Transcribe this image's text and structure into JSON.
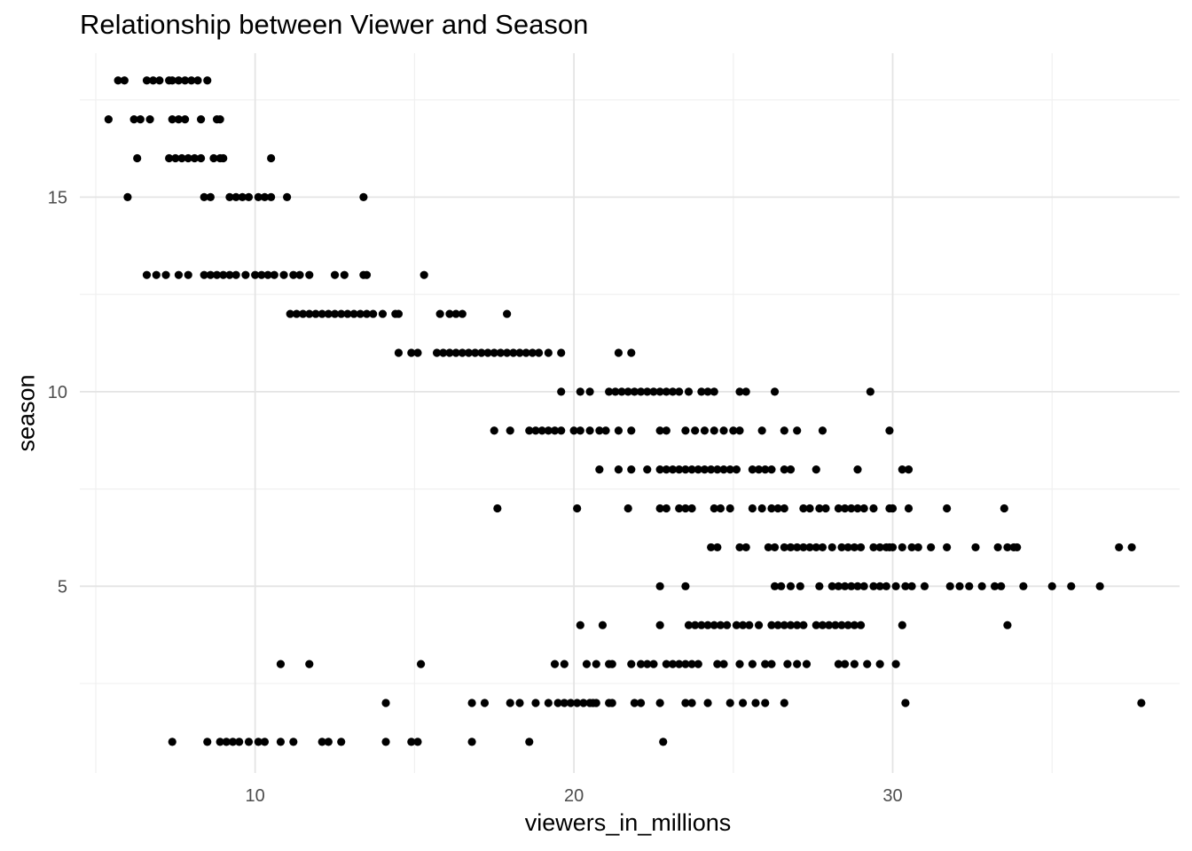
{
  "chart_data": {
    "type": "scatter",
    "title": "Relationship between Viewer and Season",
    "xlabel": "viewers_in_millions",
    "ylabel": "season",
    "xlim": [
      4.5,
      39
    ],
    "ylim": [
      0.2,
      18.7
    ],
    "x_ticks": [
      10,
      20,
      30
    ],
    "y_ticks": [
      5,
      10,
      15
    ],
    "grid": true,
    "legend": "none",
    "point_color": "#000000",
    "points": [
      {
        "season": 18,
        "x": [
          5.7,
          5.9,
          6.6,
          6.8,
          7.0,
          7.4,
          7.6,
          7.8,
          8.0,
          8.2,
          8.5,
          7.3
        ]
      },
      {
        "season": 17,
        "x": [
          5.4,
          6.2,
          6.4,
          6.7,
          7.4,
          7.6,
          7.8,
          8.3,
          8.8,
          8.9
        ]
      },
      {
        "season": 16,
        "x": [
          6.3,
          7.3,
          7.5,
          7.7,
          7.9,
          8.1,
          8.3,
          8.7,
          8.9,
          9.0,
          10.5
        ]
      },
      {
        "season": 15,
        "x": [
          6.0,
          8.4,
          8.6,
          9.2,
          9.4,
          9.6,
          9.8,
          10.1,
          10.3,
          10.5,
          11.0,
          13.4
        ]
      },
      {
        "season": 13,
        "x": [
          6.6,
          6.9,
          7.2,
          7.6,
          7.9,
          8.4,
          8.6,
          8.8,
          9.0,
          9.2,
          9.4,
          9.7,
          10.0,
          10.2,
          10.4,
          10.6,
          10.9,
          11.2,
          11.4,
          11.7,
          12.5,
          12.8,
          13.4,
          13.5,
          15.3
        ]
      },
      {
        "season": 12,
        "x": [
          11.1,
          11.3,
          11.5,
          11.7,
          11.9,
          12.1,
          12.3,
          12.5,
          12.7,
          12.9,
          13.1,
          13.3,
          13.5,
          13.7,
          14.0,
          14.4,
          14.5,
          15.8,
          16.1,
          16.3,
          16.5,
          17.9
        ]
      },
      {
        "season": 11,
        "x": [
          14.5,
          14.9,
          15.1,
          15.7,
          15.9,
          16.1,
          16.3,
          16.5,
          16.7,
          16.9,
          17.1,
          17.3,
          17.5,
          17.7,
          17.9,
          18.1,
          18.3,
          18.5,
          18.7,
          18.9,
          19.2,
          19.6,
          21.4,
          21.8
        ]
      },
      {
        "season": 10,
        "x": [
          19.6,
          20.2,
          20.5,
          21.1,
          21.3,
          21.5,
          21.7,
          21.9,
          22.1,
          22.3,
          22.5,
          22.7,
          22.9,
          23.1,
          23.3,
          23.6,
          24.0,
          24.2,
          24.4,
          25.2,
          25.4,
          26.3,
          29.3
        ]
      },
      {
        "season": 9,
        "x": [
          17.5,
          18.0,
          18.6,
          18.8,
          19.0,
          19.2,
          19.4,
          19.6,
          20.0,
          20.2,
          20.5,
          20.8,
          21.0,
          21.4,
          21.8,
          22.7,
          22.9,
          23.5,
          23.8,
          24.1,
          24.4,
          24.7,
          25.0,
          25.2,
          25.9,
          26.6,
          27.0,
          27.8,
          29.9
        ]
      },
      {
        "season": 8,
        "x": [
          20.8,
          21.4,
          21.8,
          22.3,
          22.7,
          22.9,
          23.1,
          23.3,
          23.5,
          23.7,
          23.9,
          24.1,
          24.3,
          24.5,
          24.7,
          24.9,
          25.1,
          25.6,
          25.8,
          26.0,
          26.2,
          26.6,
          26.8,
          27.6,
          28.9,
          30.3,
          30.5
        ]
      },
      {
        "season": 7,
        "x": [
          17.6,
          20.1,
          21.7,
          22.7,
          22.9,
          23.3,
          23.5,
          23.7,
          24.4,
          24.6,
          24.9,
          25.6,
          25.9,
          26.2,
          26.4,
          26.6,
          27.2,
          27.4,
          27.7,
          27.9,
          28.3,
          28.5,
          28.7,
          28.9,
          29.1,
          29.4,
          29.9,
          30.0,
          30.5,
          31.7,
          33.5
        ]
      },
      {
        "season": 6,
        "x": [
          24.3,
          24.5,
          25.2,
          25.4,
          26.1,
          26.3,
          26.6,
          26.8,
          27.0,
          27.2,
          27.4,
          27.6,
          27.8,
          28.1,
          28.4,
          28.6,
          28.8,
          29.0,
          29.4,
          29.6,
          29.8,
          29.9,
          30.0,
          30.3,
          30.6,
          30.8,
          31.2,
          31.7,
          32.6,
          33.3,
          33.6,
          33.8,
          33.9,
          37.1,
          37.5
        ]
      },
      {
        "season": 5,
        "x": [
          22.7,
          23.5,
          26.3,
          26.5,
          26.8,
          27.1,
          27.7,
          28.1,
          28.3,
          28.5,
          28.7,
          28.9,
          29.1,
          29.4,
          29.6,
          29.8,
          30.1,
          30.4,
          30.6,
          31.0,
          31.8,
          32.1,
          32.4,
          32.8,
          33.2,
          33.4,
          34.1,
          35.0,
          35.6,
          36.5
        ]
      },
      {
        "season": 4,
        "x": [
          20.2,
          20.9,
          22.7,
          23.6,
          23.8,
          24.0,
          24.2,
          24.4,
          24.6,
          24.8,
          25.1,
          25.3,
          25.5,
          25.8,
          26.2,
          26.4,
          26.6,
          26.8,
          27.0,
          27.2,
          27.6,
          27.8,
          28.0,
          28.2,
          28.4,
          28.6,
          28.8,
          29.0,
          30.3,
          33.6
        ]
      },
      {
        "season": 3,
        "x": [
          10.8,
          11.7,
          15.2,
          19.4,
          19.7,
          20.4,
          20.7,
          21.1,
          21.2,
          21.8,
          22.1,
          22.3,
          22.5,
          22.9,
          23.1,
          23.3,
          23.5,
          23.7,
          23.9,
          24.5,
          24.7,
          25.2,
          25.6,
          26.0,
          26.2,
          26.7,
          27.0,
          27.3,
          28.3,
          28.5,
          28.8,
          29.2,
          29.6,
          30.1
        ]
      },
      {
        "season": 2,
        "x": [
          14.1,
          16.8,
          17.2,
          18.0,
          18.3,
          18.8,
          19.2,
          19.5,
          19.7,
          19.9,
          20.1,
          20.3,
          20.5,
          20.6,
          20.7,
          21.1,
          21.2,
          21.9,
          22.1,
          22.7,
          23.5,
          23.7,
          24.2,
          24.9,
          25.3,
          25.7,
          26.0,
          26.6,
          30.4,
          37.8
        ]
      },
      {
        "season": 1,
        "x": [
          7.4,
          8.5,
          8.9,
          9.1,
          9.3,
          9.5,
          9.8,
          10.1,
          10.3,
          10.8,
          11.2,
          12.1,
          12.3,
          12.7,
          14.1,
          14.9,
          15.1,
          16.8,
          18.6,
          22.8
        ]
      }
    ]
  }
}
